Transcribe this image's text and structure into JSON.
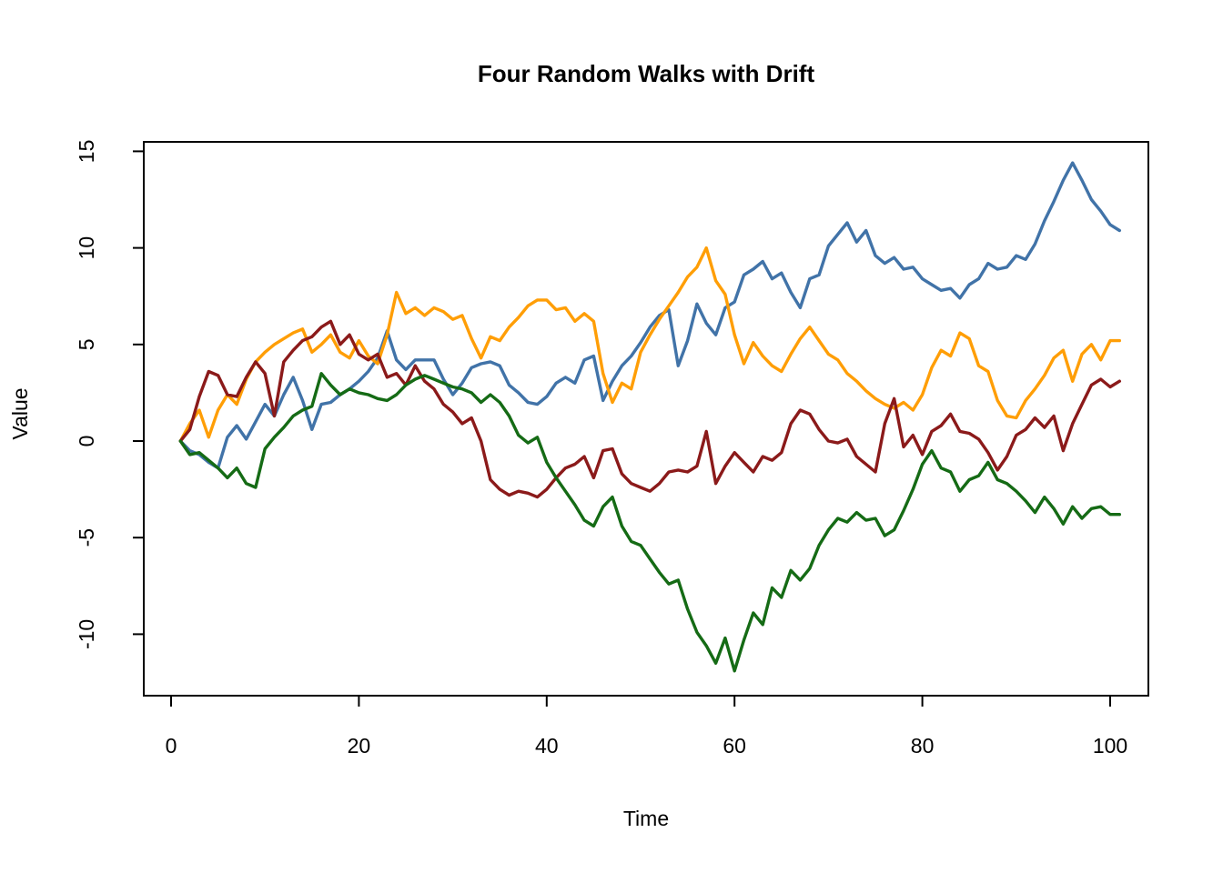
{
  "figure": {
    "background_color": "#FFFFFF",
    "axis_color": "#000000"
  },
  "chart_data": {
    "type": "line",
    "title": "Four Random Walks with Drift",
    "xlabel": "Time",
    "ylabel": "Value",
    "x_ticks": [
      0,
      20,
      40,
      60,
      80,
      100
    ],
    "y_ticks": [
      15,
      10,
      5,
      0,
      -5,
      -10
    ],
    "xlim": [
      -3,
      105
    ],
    "ylim": [
      -13.3,
      15.5
    ],
    "x_start": 1,
    "x_step": 1,
    "grid": false,
    "legend_position": "none",
    "series": [
      {
        "name": "walk-1-steelblue",
        "color": "#4173A8",
        "values": [
          0.0,
          -0.5,
          -0.7,
          -1.1,
          -1.4,
          0.2,
          0.8,
          0.1,
          1.0,
          1.9,
          1.3,
          2.4,
          3.3,
          2.1,
          0.6,
          1.9,
          2.0,
          2.4,
          2.7,
          3.1,
          3.6,
          4.3,
          5.7,
          4.2,
          3.7,
          4.2,
          4.2,
          4.2,
          3.2,
          2.4,
          3.0,
          3.8,
          4.0,
          4.1,
          3.9,
          2.9,
          2.5,
          2.0,
          1.9,
          2.3,
          3.0,
          3.3,
          3.0,
          4.2,
          4.4,
          2.1,
          3.1,
          3.9,
          4.4,
          5.1,
          5.9,
          6.5,
          6.8,
          3.9,
          5.2,
          7.1,
          6.1,
          5.5,
          6.9,
          7.2,
          8.6,
          8.9,
          9.3,
          8.4,
          8.7,
          7.7,
          6.9,
          8.4,
          8.6,
          10.1,
          10.7,
          11.3,
          10.3,
          10.9,
          9.6,
          9.2,
          9.5,
          8.9,
          9.0,
          8.4,
          8.1,
          7.8,
          7.9,
          7.4,
          8.1,
          8.4,
          9.2,
          8.9,
          9.0,
          9.6,
          9.4,
          10.2,
          11.4,
          12.4,
          13.5,
          14.4,
          13.5,
          12.5,
          11.9,
          11.2,
          10.9
        ]
      },
      {
        "name": "walk-2-orange",
        "color": "#FF9E06",
        "values": [
          0.0,
          0.9,
          1.6,
          0.2,
          1.6,
          2.4,
          1.9,
          3.2,
          4.1,
          4.6,
          5.0,
          5.3,
          5.6,
          5.8,
          4.6,
          5.0,
          5.5,
          4.6,
          4.3,
          5.2,
          4.4,
          4.0,
          5.5,
          7.7,
          6.6,
          6.9,
          6.5,
          6.9,
          6.7,
          6.3,
          6.5,
          5.3,
          4.3,
          5.4,
          5.2,
          5.9,
          6.4,
          7.0,
          7.3,
          7.3,
          6.8,
          6.9,
          6.2,
          6.6,
          6.2,
          3.5,
          2.0,
          3.0,
          2.7,
          4.6,
          5.5,
          6.3,
          7.0,
          7.7,
          8.5,
          9.0,
          10.0,
          8.3,
          7.6,
          5.5,
          4.0,
          5.1,
          4.4,
          3.9,
          3.6,
          4.5,
          5.3,
          5.9,
          5.2,
          4.5,
          4.2,
          3.5,
          3.1,
          2.6,
          2.2,
          1.9,
          1.7,
          2.0,
          1.6,
          2.4,
          3.8,
          4.7,
          4.4,
          5.6,
          5.3,
          3.9,
          3.6,
          2.1,
          1.3,
          1.2,
          2.1,
          2.7,
          3.4,
          4.3,
          4.7,
          3.1,
          4.5,
          5.0,
          4.2,
          5.2,
          5.2
        ]
      },
      {
        "name": "walk-3-darkred",
        "color": "#8B1A1A",
        "values": [
          0.0,
          0.6,
          2.3,
          3.6,
          3.4,
          2.4,
          2.3,
          3.3,
          4.1,
          3.5,
          1.3,
          4.1,
          4.7,
          5.2,
          5.4,
          5.9,
          6.2,
          5.0,
          5.5,
          4.5,
          4.2,
          4.5,
          3.3,
          3.5,
          2.9,
          3.9,
          3.1,
          2.7,
          1.9,
          1.5,
          0.9,
          1.2,
          0.0,
          -2.0,
          -2.5,
          -2.8,
          -2.6,
          -2.7,
          -2.9,
          -2.5,
          -1.9,
          -1.4,
          -1.2,
          -0.8,
          -1.9,
          -0.5,
          -0.4,
          -1.7,
          -2.2,
          -2.4,
          -2.6,
          -2.2,
          -1.6,
          -1.5,
          -1.6,
          -1.3,
          0.5,
          -2.2,
          -1.3,
          -0.6,
          -1.1,
          -1.6,
          -0.8,
          -1.0,
          -0.6,
          0.9,
          1.6,
          1.4,
          0.6,
          0.0,
          -0.1,
          0.1,
          -0.8,
          -1.2,
          -1.6,
          0.9,
          2.2,
          -0.3,
          0.3,
          -0.7,
          0.5,
          0.8,
          1.4,
          0.5,
          0.4,
          0.1,
          -0.6,
          -1.5,
          -0.8,
          0.3,
          0.6,
          1.2,
          0.7,
          1.3,
          -0.5,
          0.9,
          1.9,
          2.9,
          3.2,
          2.8,
          3.1
        ]
      },
      {
        "name": "walk-4-darkgreen",
        "color": "#156B15",
        "values": [
          0.0,
          -0.7,
          -0.6,
          -1.0,
          -1.4,
          -1.9,
          -1.4,
          -2.2,
          -2.4,
          -0.4,
          0.2,
          0.7,
          1.3,
          1.6,
          1.8,
          3.5,
          2.9,
          2.4,
          2.7,
          2.5,
          2.4,
          2.2,
          2.1,
          2.4,
          2.9,
          3.2,
          3.4,
          3.2,
          3.0,
          2.8,
          2.7,
          2.5,
          2.0,
          2.4,
          2.0,
          1.3,
          0.3,
          -0.1,
          0.2,
          -1.1,
          -1.9,
          -2.6,
          -3.3,
          -4.1,
          -4.4,
          -3.4,
          -2.9,
          -4.4,
          -5.2,
          -5.4,
          -6.1,
          -6.8,
          -7.4,
          -7.2,
          -8.7,
          -9.9,
          -10.6,
          -11.5,
          -10.2,
          -11.9,
          -10.3,
          -8.9,
          -9.5,
          -7.6,
          -8.1,
          -6.7,
          -7.2,
          -6.6,
          -5.4,
          -4.6,
          -4.0,
          -4.2,
          -3.7,
          -4.1,
          -4.0,
          -4.9,
          -4.6,
          -3.6,
          -2.5,
          -1.2,
          -0.5,
          -1.4,
          -1.6,
          -2.6,
          -2.0,
          -1.8,
          -1.1,
          -2.0,
          -2.2,
          -2.6,
          -3.1,
          -3.7,
          -2.9,
          -3.5,
          -4.3,
          -3.4,
          -4.0,
          -3.5,
          -3.4,
          -3.8,
          -3.8
        ]
      }
    ]
  }
}
